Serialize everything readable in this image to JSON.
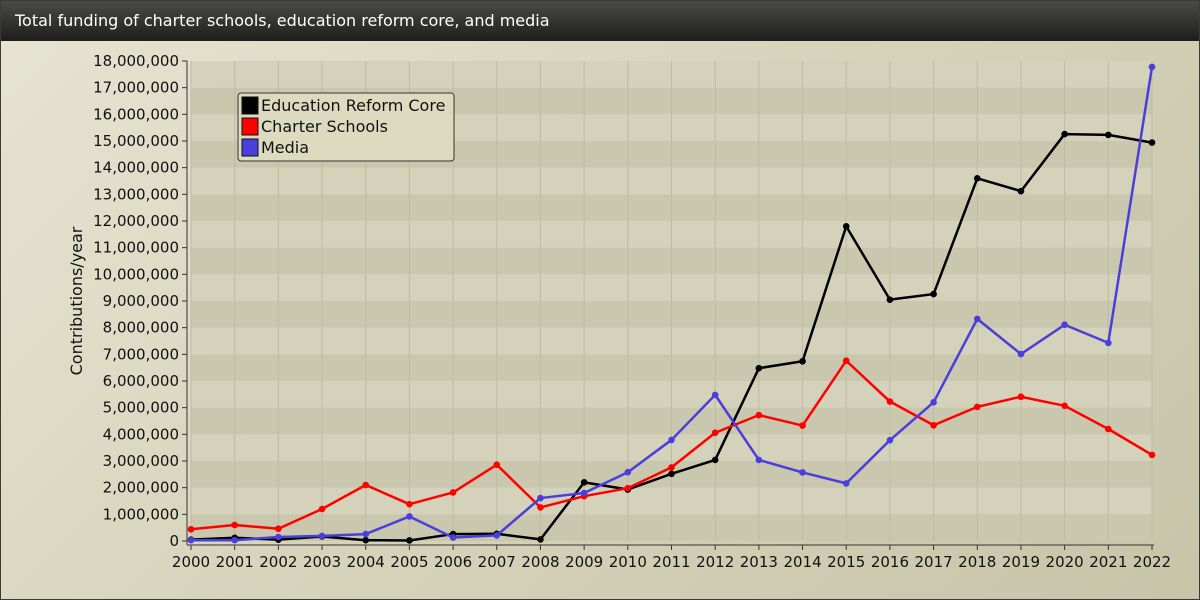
{
  "window": {
    "title": "Total funding of charter schools, education reform core, and media"
  },
  "chart_data": {
    "type": "line",
    "title": "Total funding of charter schools, education reform core, and media",
    "xlabel": "",
    "ylabel": "Contributions/year",
    "x": [
      2000,
      2001,
      2002,
      2003,
      2004,
      2005,
      2006,
      2007,
      2008,
      2009,
      2010,
      2011,
      2012,
      2013,
      2014,
      2015,
      2016,
      2017,
      2018,
      2019,
      2020,
      2021,
      2022
    ],
    "ylim": [
      0,
      18000000
    ],
    "yticks": [
      0,
      1000000,
      2000000,
      3000000,
      4000000,
      5000000,
      6000000,
      7000000,
      8000000,
      9000000,
      10000000,
      11000000,
      12000000,
      13000000,
      14000000,
      15000000,
      16000000,
      17000000,
      18000000
    ],
    "ytick_labels": [
      "0",
      "1,000,000",
      "2,000,000",
      "3,000,000",
      "4,000,000",
      "5,000,000",
      "6,000,000",
      "7,000,000",
      "8,000,000",
      "9,000,000",
      "10,000,000",
      "11,000,000",
      "12,000,000",
      "13,000,000",
      "14,000,000",
      "15,000,000",
      "16,000,000",
      "17,000,000",
      "18,000,000"
    ],
    "legend_position": "top-left",
    "grid": true,
    "series": [
      {
        "name": "Education Reform Core",
        "color": "#000000",
        "values": [
          50000,
          120000,
          50000,
          170000,
          30000,
          20000,
          260000,
          270000,
          60000,
          2200000,
          1930000,
          2520000,
          3040000,
          6480000,
          6740000,
          11800000,
          9050000,
          9260000,
          13600000,
          13120000,
          15260000,
          15230000,
          14940000
        ]
      },
      {
        "name": "Charter Schools",
        "color": "#ff0000",
        "values": [
          440000,
          600000,
          460000,
          1200000,
          2100000,
          1380000,
          1820000,
          2860000,
          1260000,
          1680000,
          1980000,
          2760000,
          4060000,
          4720000,
          4330000,
          6760000,
          5230000,
          4340000,
          5030000,
          5410000,
          5070000,
          4200000,
          3230000
        ]
      },
      {
        "name": "Media",
        "color": "#4a3fdd",
        "values": [
          30000,
          30000,
          150000,
          190000,
          260000,
          920000,
          130000,
          210000,
          1610000,
          1800000,
          2580000,
          3790000,
          5480000,
          3040000,
          2570000,
          2160000,
          3780000,
          5200000,
          8330000,
          7010000,
          8110000,
          7430000,
          17780000
        ]
      }
    ]
  }
}
